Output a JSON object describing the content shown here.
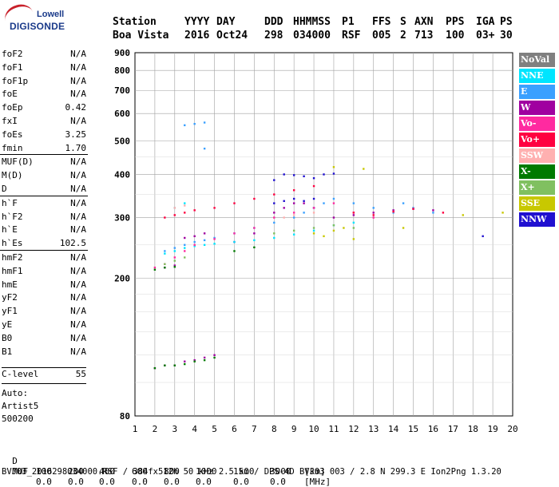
{
  "logo": {
    "line1": "Lowell",
    "line2": "DIGISONDE"
  },
  "header": {
    "row1": [
      "Station",
      "YYYY",
      "DAY",
      "DDD",
      "HHMMSS",
      "P1",
      "FFS",
      "S",
      "AXN",
      "PPS",
      "IGA",
      "PS"
    ],
    "row2": [
      "Boa Vista",
      "2016",
      "Oct24",
      "298",
      "034000",
      "RSF",
      "005",
      "2",
      "713",
      "100",
      "03+",
      "30"
    ]
  },
  "params": {
    "group1": [
      {
        "label": "foF2",
        "value": "N/A"
      },
      {
        "label": "foF1",
        "value": "N/A"
      },
      {
        "label": "foF1p",
        "value": "N/A"
      },
      {
        "label": "foE",
        "value": "N/A"
      },
      {
        "label": "foEp",
        "value": "0.42"
      },
      {
        "label": "fxI",
        "value": "N/A"
      },
      {
        "label": "foEs",
        "value": "3.25"
      },
      {
        "label": "fmin",
        "value": "1.70"
      }
    ],
    "group2": [
      {
        "label": "MUF(D)",
        "value": "N/A"
      },
      {
        "label": "M(D)",
        "value": "N/A"
      },
      {
        "label": "D",
        "value": "N/A"
      }
    ],
    "group3": [
      {
        "label": "h`F",
        "value": "N/A"
      },
      {
        "label": "h`F2",
        "value": "N/A"
      },
      {
        "label": "h`E",
        "value": "N/A"
      },
      {
        "label": "h`Es",
        "value": "102.5"
      }
    ],
    "group4": [
      {
        "label": "hmF2",
        "value": "N/A"
      },
      {
        "label": "hmF1",
        "value": "N/A"
      },
      {
        "label": "hmE",
        "value": "N/A"
      },
      {
        "label": "yF2",
        "value": "N/A"
      },
      {
        "label": "yF1",
        "value": "N/A"
      },
      {
        "label": "yE",
        "value": "N/A"
      },
      {
        "label": "B0",
        "value": "N/A"
      },
      {
        "label": "B1",
        "value": "N/A"
      }
    ],
    "clevel": {
      "label": "C-level",
      "value": "55"
    },
    "auto": [
      "Auto:",
      "Artist5",
      "500200"
    ]
  },
  "legend": [
    {
      "name": "NoVal",
      "color": "#808080"
    },
    {
      "name": "NNE",
      "color": "#00e5ff"
    },
    {
      "name": "E",
      "color": "#3aa0ff"
    },
    {
      "name": "W",
      "color": "#a000a0"
    },
    {
      "name": "Vo-",
      "color": "#ff2aa0"
    },
    {
      "name": "Vo+",
      "color": "#ff0040"
    },
    {
      "name": "SSW",
      "color": "#ffb0b0"
    },
    {
      "name": "X-",
      "color": "#007a00"
    },
    {
      "name": "X+",
      "color": "#80c060"
    },
    {
      "name": "SSE",
      "color": "#c8c800"
    },
    {
      "name": "NNW",
      "color": "#2010d0"
    }
  ],
  "chart_data": {
    "type": "scatter",
    "xlim": [
      1,
      20
    ],
    "ylim": [
      80,
      900
    ],
    "xticks": [
      "1",
      "2",
      "3",
      "4",
      "5",
      "6",
      "7",
      "8",
      "9",
      "10",
      "11",
      "12",
      "13",
      "14",
      "15",
      "16",
      "17",
      "18",
      "19",
      "20"
    ],
    "yticks": [
      "80",
      "200",
      "300",
      "400",
      "500",
      "600",
      "700",
      "800",
      "900"
    ],
    "grid": true,
    "legend_position": "right",
    "series": [
      {
        "name": "W",
        "x": [
          2.0,
          2.5,
          3.0,
          3.5,
          4.0,
          4.5,
          5.0,
          6.0,
          7.0,
          8.0,
          8.5,
          9.0,
          9.5,
          10.0,
          11.0,
          12.0,
          13.0,
          14.0,
          15.0,
          16.0,
          3.5,
          4.0,
          4.5,
          2.5,
          3.0
        ],
        "y": [
          110,
          112,
          112,
          115,
          116,
          118,
          120,
          255,
          270,
          310,
          320,
          330,
          330,
          320,
          300,
          305,
          310,
          315,
          318,
          315,
          262,
          265,
          270,
          215,
          218
        ]
      },
      {
        "name": "E",
        "x": [
          2.5,
          3.0,
          3.5,
          4.0,
          4.5,
          5.0,
          6.0,
          7.0,
          8.0,
          9.0,
          9.5,
          10.0,
          10.5,
          11.0,
          12.0,
          13.0,
          14.0,
          14.5,
          15.0,
          16.0,
          4.0,
          4.5,
          3.5,
          4.5
        ],
        "y": [
          240,
          245,
          250,
          255,
          258,
          262,
          270,
          280,
          290,
          300,
          310,
          320,
          330,
          340,
          330,
          320,
          310,
          330,
          320,
          310,
          560,
          565,
          555,
          475
        ]
      },
      {
        "name": "NNE",
        "x": [
          2.5,
          3.0,
          3.5,
          4.0,
          4.5,
          5.0,
          6.0,
          7.0,
          8.0,
          9.0,
          10.0,
          11.0,
          12.0,
          3.0,
          3.5
        ],
        "y": [
          236,
          240,
          245,
          248,
          250,
          252,
          255,
          258,
          262,
          268,
          275,
          285,
          290,
          320,
          330
        ]
      },
      {
        "name": "Vo-",
        "x": [
          2.0,
          2.5,
          3.0,
          3.5,
          4.0,
          5.0,
          6.0,
          7.0,
          8.0,
          9.0,
          10.0,
          11.0,
          12.0,
          13.0
        ],
        "y": [
          215,
          220,
          230,
          240,
          250,
          260,
          270,
          280,
          300,
          310,
          320,
          330,
          310,
          300
        ]
      },
      {
        "name": "Vo+",
        "x": [
          2.5,
          3.0,
          3.5,
          4.0,
          5.0,
          6.0,
          7.0,
          8.0,
          9.0,
          10.0,
          12.0,
          13.0,
          14.0,
          15.0,
          16.5
        ],
        "y": [
          300,
          305,
          310,
          315,
          320,
          330,
          340,
          350,
          360,
          370,
          310,
          305,
          312,
          318,
          310
        ]
      },
      {
        "name": "X-",
        "x": [
          2.0,
          2.5,
          3.0,
          3.5,
          4.0,
          4.5,
          5.0,
          2.0,
          2.5,
          3.0,
          6.0,
          7.0
        ],
        "y": [
          110,
          112,
          112,
          113,
          115,
          116,
          118,
          212,
          215,
          216,
          240,
          246
        ]
      },
      {
        "name": "X+",
        "x": [
          2.5,
          3.0,
          3.5,
          8.0,
          9.0,
          10.0,
          11.0,
          12.0
        ],
        "y": [
          220,
          225,
          230,
          270,
          275,
          280,
          285,
          280
        ]
      },
      {
        "name": "SSE",
        "x": [
          10.0,
          10.5,
          11.0,
          11.5,
          12.0,
          11.0,
          12.5,
          14.5,
          17.5,
          19.5
        ],
        "y": [
          270,
          265,
          275,
          280,
          260,
          420,
          415,
          280,
          305,
          310
        ]
      },
      {
        "name": "NNW",
        "x": [
          8.0,
          8.5,
          9.0,
          9.5,
          10.0,
          10.5,
          11.0,
          8.5,
          9.0,
          9.5,
          10.0,
          18.5,
          8.0
        ],
        "y": [
          330,
          335,
          340,
          335,
          340,
          400,
          402,
          400,
          398,
          395,
          390,
          265,
          385
        ]
      },
      {
        "name": "SSW",
        "x": [
          3.0,
          3.5,
          8.5,
          9.0,
          10.0
        ],
        "y": [
          320,
          325,
          300,
          305,
          310
        ]
      }
    ]
  },
  "footer": {
    "d_label": "D",
    "d_values": [
      "100",
      "200",
      "400",
      "600",
      "800",
      "1000",
      "1500",
      "3000",
      "[km]"
    ],
    "muf_label": "MUF",
    "muf_values": [
      "0.0",
      "0.0",
      "0.0",
      "0.0",
      "0.0",
      "0.0",
      "0.0",
      "0.0",
      "[MHz]"
    ],
    "info": "BVJ03_2016298034000.RSF / 384fx512h 50 kHz 2.5 km / DPS-4D BVJ03 003 / 2.8 N 299.3 E Ion2Png 1.3.20"
  }
}
